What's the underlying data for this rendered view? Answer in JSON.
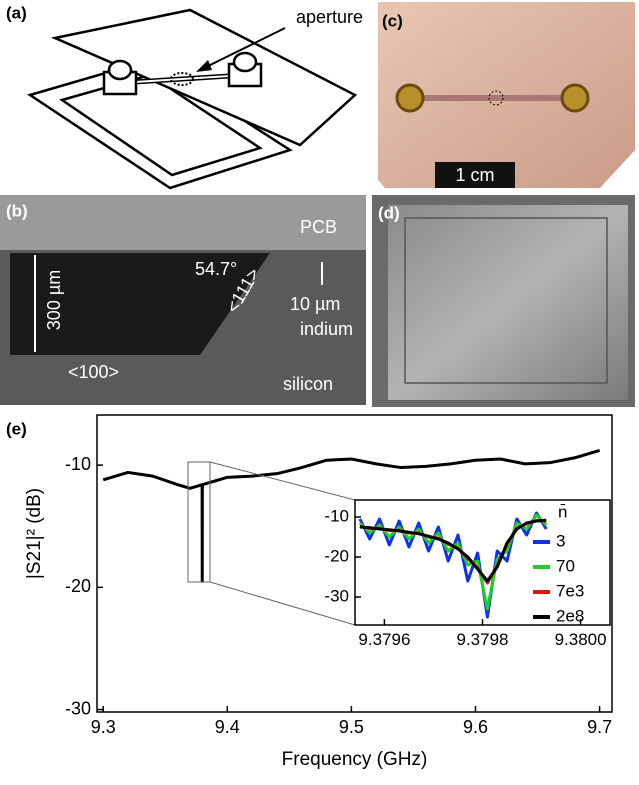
{
  "panels": {
    "a": {
      "label": "(a)",
      "annotation": "aperture"
    },
    "b": {
      "label": "(b)",
      "pcb": "PCB",
      "thickness": "300 µm",
      "angle": "54.7°",
      "indium_thickness": "10 µm",
      "indium": "indium",
      "facet": "<111>",
      "plane": "<100>",
      "silicon": "silicon"
    },
    "c": {
      "label": "(c)",
      "scale": "1 cm"
    },
    "d": {
      "label": "(d)"
    }
  },
  "chart_data": [
    {
      "type": "line",
      "panel_label": "(e)",
      "x_label": "Frequency (GHz)",
      "y_label": "|S21|² (dB)",
      "xlim": [
        9.295,
        9.71
      ],
      "ylim": [
        -30.2,
        -5.9
      ],
      "xticks": [
        9.3,
        9.4,
        9.5,
        9.6,
        9.7
      ],
      "yticks": [
        -10,
        -20,
        -30
      ],
      "x": [
        9.3,
        9.32,
        9.34,
        9.36,
        9.37,
        9.3797,
        9.3798,
        9.3799,
        9.39,
        9.4,
        9.42,
        9.44,
        9.46,
        9.48,
        9.5,
        9.52,
        9.54,
        9.56,
        9.58,
        9.6,
        9.62,
        9.64,
        9.66,
        9.68,
        9.7
      ],
      "series": [
        {
          "color": "#000000",
          "values": [
            -11.2,
            -10.6,
            -10.9,
            -11.6,
            -11.9,
            -11.6,
            -19.5,
            -11.6,
            -11.3,
            -11.0,
            -10.9,
            -10.7,
            -10.2,
            -9.6,
            -9.5,
            -9.9,
            -10.2,
            -10.1,
            -9.9,
            -9.6,
            -9.5,
            -9.9,
            -9.8,
            -9.4,
            -8.8
          ]
        }
      ]
    },
    {
      "type": "line",
      "legend_title": "n̄",
      "xlim": [
        9.37954,
        9.38006
      ],
      "ylim": [
        -37,
        -5.75
      ],
      "xticks": [
        9.3796,
        9.3798,
        {
          "value": 9.38,
          "label": "9.3800"
        }
      ],
      "yticks": [
        -10,
        -20,
        -30
      ],
      "x": [
        9.37955,
        9.37957,
        9.37959,
        9.37961,
        9.37963,
        9.37965,
        9.37967,
        9.37969,
        9.37971,
        9.37973,
        9.37975,
        9.37977,
        9.37979,
        9.37981,
        9.37983,
        9.37985,
        9.37987,
        9.37989,
        9.37991,
        9.37993
      ],
      "series": [
        {
          "name": "3",
          "color": "#1030f0",
          "values": [
            -10.5,
            -15.5,
            -10.5,
            -17.0,
            -11.0,
            -17.5,
            -11.5,
            -18.5,
            -12.5,
            -21.0,
            -14.5,
            -26.0,
            -19.0,
            -35.0,
            -18.5,
            -21.0,
            -10.5,
            -14.5,
            -9.0,
            -13.0
          ]
        },
        {
          "name": "70",
          "color": "#20d020",
          "values": [
            -11.5,
            -14.0,
            -12.0,
            -15.0,
            -12.5,
            -15.5,
            -13.0,
            -16.5,
            -14.0,
            -18.5,
            -16.5,
            -22.0,
            -21.0,
            -33.0,
            -20.5,
            -18.5,
            -11.5,
            -13.0,
            -9.5,
            -12.0
          ]
        },
        {
          "name": "7e3",
          "color": "#f01010",
          "values": [
            -12.3,
            -12.9,
            -12.8,
            -13.4,
            -13.3,
            -14.0,
            -14.0,
            -15.0,
            -15.3,
            -16.8,
            -17.8,
            -20.4,
            -22.7,
            -26.5,
            -22.2,
            -16.8,
            -12.8,
            -11.7,
            -10.9,
            -11.0
          ]
        },
        {
          "name": "2e8",
          "color": "#000000",
          "values": [
            -12.5,
            -12.7,
            -13.0,
            -13.2,
            -13.5,
            -13.8,
            -14.2,
            -14.8,
            -15.5,
            -16.5,
            -18.0,
            -20.0,
            -23.0,
            -26.0,
            -22.5,
            -16.5,
            -13.0,
            -11.5,
            -11.0,
            -10.8
          ]
        }
      ]
    }
  ]
}
